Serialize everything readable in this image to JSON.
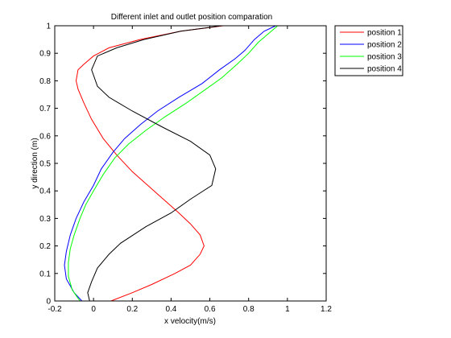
{
  "chart_data": {
    "type": "line",
    "title": "Different inlet and outlet position comparation",
    "xlabel": "x velocity(m/s)",
    "ylabel": "y direction (m)",
    "xlim": [
      -0.2,
      1.2
    ],
    "ylim": [
      0,
      1
    ],
    "xticks": [
      "-0.2",
      "0",
      "0.2",
      "0.4",
      "0.6",
      "0.8",
      "1",
      "1.2"
    ],
    "yticks": [
      "0",
      "0.1",
      "0.2",
      "0.3",
      "0.4",
      "0.5",
      "0.6",
      "0.7",
      "0.8",
      "0.9",
      "1"
    ],
    "grid": false,
    "legend_position": "top-right",
    "series": [
      {
        "name": "position 1",
        "color": "#ff0000",
        "points": [
          [
            0.09,
            0.0
          ],
          [
            0.2,
            0.03
          ],
          [
            0.3,
            0.06
          ],
          [
            0.42,
            0.1
          ],
          [
            0.5,
            0.13
          ],
          [
            0.55,
            0.17
          ],
          [
            0.57,
            0.2
          ],
          [
            0.55,
            0.24
          ],
          [
            0.5,
            0.28
          ],
          [
            0.44,
            0.32
          ],
          [
            0.36,
            0.37
          ],
          [
            0.28,
            0.42
          ],
          [
            0.2,
            0.47
          ],
          [
            0.12,
            0.53
          ],
          [
            0.05,
            0.59
          ],
          [
            -0.01,
            0.66
          ],
          [
            -0.05,
            0.72
          ],
          [
            -0.08,
            0.77
          ],
          [
            -0.09,
            0.8
          ],
          [
            -0.08,
            0.84
          ],
          [
            -0.05,
            0.86
          ],
          [
            0.0,
            0.89
          ],
          [
            0.08,
            0.92
          ],
          [
            0.24,
            0.95
          ],
          [
            0.45,
            0.98
          ],
          [
            0.67,
            1.0
          ]
        ]
      },
      {
        "name": "position 2",
        "color": "#0000ff",
        "points": [
          [
            -0.06,
            0.0
          ],
          [
            -0.1,
            0.03
          ],
          [
            -0.14,
            0.08
          ],
          [
            -0.15,
            0.13
          ],
          [
            -0.14,
            0.18
          ],
          [
            -0.12,
            0.24
          ],
          [
            -0.09,
            0.3
          ],
          [
            -0.05,
            0.36
          ],
          [
            0.0,
            0.42
          ],
          [
            0.04,
            0.48
          ],
          [
            0.1,
            0.54
          ],
          [
            0.16,
            0.59
          ],
          [
            0.24,
            0.64
          ],
          [
            0.33,
            0.69
          ],
          [
            0.44,
            0.74
          ],
          [
            0.56,
            0.79
          ],
          [
            0.65,
            0.84
          ],
          [
            0.73,
            0.88
          ],
          [
            0.78,
            0.91
          ],
          [
            0.83,
            0.95
          ],
          [
            0.88,
            0.98
          ],
          [
            0.94,
            1.0
          ]
        ]
      },
      {
        "name": "position 3",
        "color": "#00ff00",
        "points": [
          [
            -0.07,
            0.0
          ],
          [
            -0.11,
            0.04
          ],
          [
            -0.13,
            0.09
          ],
          [
            -0.13,
            0.14
          ],
          [
            -0.12,
            0.19
          ],
          [
            -0.1,
            0.24
          ],
          [
            -0.07,
            0.3
          ],
          [
            -0.04,
            0.35
          ],
          [
            0.0,
            0.4
          ],
          [
            0.05,
            0.46
          ],
          [
            0.11,
            0.52
          ],
          [
            0.18,
            0.57
          ],
          [
            0.27,
            0.62
          ],
          [
            0.37,
            0.67
          ],
          [
            0.48,
            0.72
          ],
          [
            0.58,
            0.77
          ],
          [
            0.66,
            0.81
          ],
          [
            0.74,
            0.86
          ],
          [
            0.8,
            0.9
          ],
          [
            0.85,
            0.94
          ],
          [
            0.9,
            0.97
          ],
          [
            0.95,
            1.0
          ]
        ]
      },
      {
        "name": "position 4",
        "color": "#000000",
        "points": [
          [
            -0.02,
            0.0
          ],
          [
            -0.03,
            0.03
          ],
          [
            -0.01,
            0.07
          ],
          [
            0.02,
            0.12
          ],
          [
            0.08,
            0.17
          ],
          [
            0.14,
            0.21
          ],
          [
            0.27,
            0.27
          ],
          [
            0.4,
            0.32
          ],
          [
            0.5,
            0.37
          ],
          [
            0.61,
            0.42
          ],
          [
            0.63,
            0.48
          ],
          [
            0.6,
            0.53
          ],
          [
            0.5,
            0.58
          ],
          [
            0.36,
            0.63
          ],
          [
            0.2,
            0.69
          ],
          [
            0.08,
            0.74
          ],
          [
            0.02,
            0.78
          ],
          [
            -0.01,
            0.84
          ],
          [
            0.02,
            0.89
          ],
          [
            0.12,
            0.92
          ],
          [
            0.26,
            0.95
          ],
          [
            0.45,
            0.98
          ],
          [
            0.66,
            1.0
          ]
        ]
      }
    ]
  }
}
